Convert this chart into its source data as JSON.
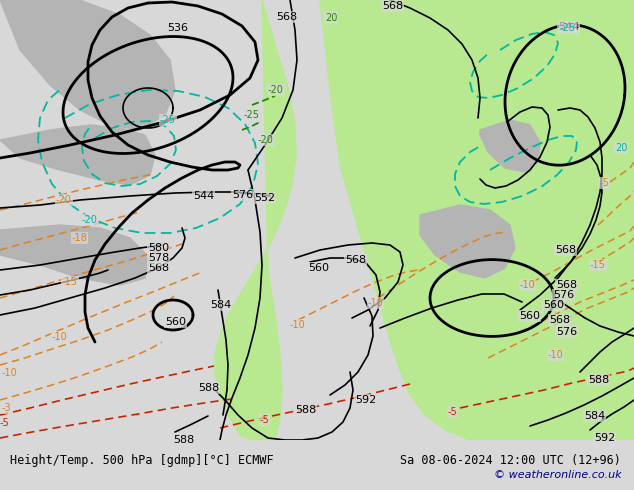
{
  "title_left": "Height/Temp. 500 hPa [gdmp][°C] ECMWF",
  "title_right": "Sa 08-06-2024 12:00 UTC (12+96)",
  "copyright": "© weatheronline.co.uk",
  "bg_color": "#d8d8d8",
  "map_bg_color": "#d8d8d8",
  "green_color": "#b8e890",
  "fig_width": 6.34,
  "fig_height": 4.9,
  "dpi": 100,
  "bottom_bar_color": "#ffffff",
  "title_color": "#000000",
  "copyright_color": "#00008b",
  "black": "#000000",
  "orange": "#e08020",
  "red": "#cc2200",
  "teal": "#00b8a0",
  "green_lbl": "#228800"
}
